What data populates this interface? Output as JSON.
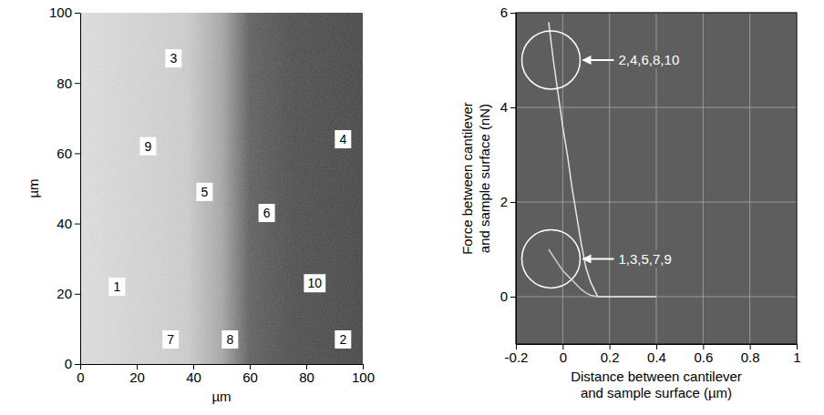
{
  "chart_data": [
    {
      "type": "scatter",
      "x_label": "µm",
      "y_label": "µm",
      "labels": [
        "1",
        "2",
        "3",
        "4",
        "5",
        "6",
        "7",
        "8",
        "9",
        "10"
      ],
      "x": [
        13,
        93,
        33,
        93,
        44,
        66,
        32,
        53,
        24,
        83
      ],
      "values": [
        22,
        7,
        87,
        64,
        49,
        43,
        7,
        7,
        62,
        23
      ],
      "xlim": [
        0,
        100
      ],
      "ylim": [
        0,
        100
      ],
      "xticks": [
        0,
        20,
        40,
        60,
        80,
        100
      ],
      "yticks": [
        0,
        20,
        40,
        60,
        80,
        100
      ],
      "grid": false,
      "marker": "box"
    },
    {
      "type": "line",
      "x_label": "Distance between cantilever and sample surface (µm)",
      "y_label": "Force between cantilever and sample surface (nN)",
      "x": [
        -0.06,
        -0.04,
        -0.02,
        0,
        0.02,
        0.04,
        0.06,
        0.08,
        0.1,
        0.12,
        0.15,
        0.2,
        0.3,
        0.4
      ],
      "series": [
        {
          "color": "#e6e6e6",
          "line_style": "solid",
          "values": [
            5.8,
            5.0,
            4.3,
            3.6,
            3.0,
            2.3,
            1.7,
            1.1,
            0.6,
            0.3,
            0,
            0,
            0,
            0
          ]
        },
        {
          "color": "#cfcfcf",
          "line_style": "solid",
          "values": [
            1.0,
            0.85,
            0.7,
            0.55,
            0.45,
            0.35,
            0.25,
            0.15,
            0.08,
            0.03,
            0,
            0,
            0,
            0
          ]
        }
      ],
      "annotations": [
        {
          "text": "2,4,6,8,10",
          "x": -0.05,
          "y": 5
        },
        {
          "text": "1,3,5,7,9",
          "x": -0.05,
          "y": 0.8
        }
      ],
      "xlim": [
        -0.2,
        1.0
      ],
      "ylim": [
        -1,
        6
      ],
      "xticks": [
        -0.2,
        0,
        0.2,
        0.4,
        0.6,
        0.8,
        1.0
      ],
      "yticks": [
        0,
        2,
        4,
        6
      ],
      "grid": true
    }
  ]
}
